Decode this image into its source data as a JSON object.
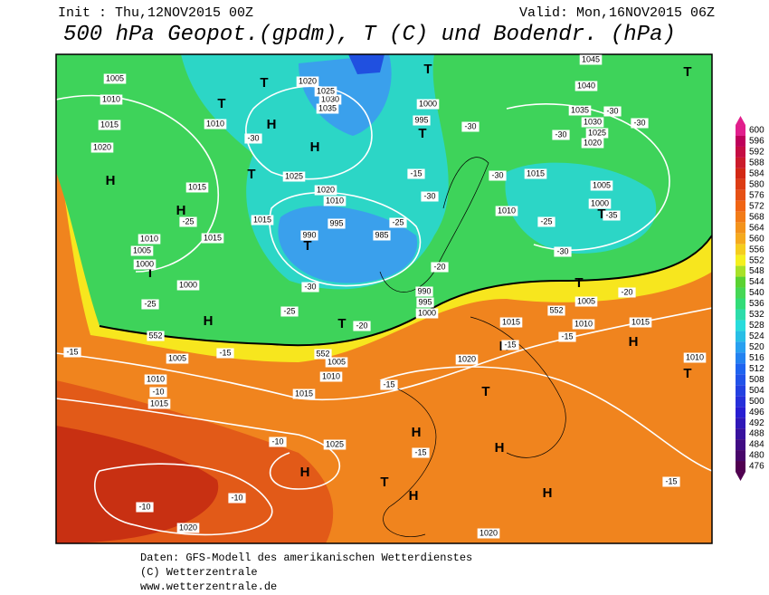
{
  "header": {
    "init": "Init : Thu,12NOV2015 00Z",
    "valid": "Valid: Mon,16NOV2015 06Z",
    "title": "500 hPa Geopot.(gpdm), T (C) und Bodendr. (hPa)"
  },
  "colorbar": {
    "levels": [
      600,
      596,
      592,
      588,
      584,
      580,
      576,
      572,
      568,
      564,
      560,
      556,
      552,
      548,
      544,
      540,
      536,
      532,
      528,
      524,
      520,
      516,
      512,
      508,
      504,
      500,
      496,
      492,
      488,
      484,
      480,
      476
    ]
  },
  "map": {
    "systems": [
      "H",
      "H",
      "H",
      "H",
      "H",
      "H",
      "H",
      "H",
      "H",
      "H",
      "H",
      "H",
      "T",
      "T",
      "T",
      "T",
      "T",
      "T",
      "T",
      "T",
      "T",
      "T",
      "T",
      "T",
      "T",
      "T"
    ],
    "labels": [
      "1005",
      "1010",
      "1015",
      "1020",
      "1010",
      "1015",
      "1015",
      "1015",
      "1010",
      "1005",
      "1000",
      "1000",
      "1020",
      "1035",
      "1030",
      "1025",
      "1025",
      "1020",
      "1010",
      "995",
      "990",
      "985",
      "1000",
      "995",
      "1045",
      "1040",
      "1035",
      "1030",
      "1025",
      "1020",
      "1015",
      "1010",
      "1005",
      "1000",
      "1005",
      "1010",
      "1015",
      "1015",
      "1010",
      "990",
      "995",
      "1000",
      "1005",
      "1005",
      "1010",
      "1010",
      "1015",
      "1015",
      "1020",
      "1025",
      "1020",
      "1020",
      "552",
      "552",
      "552",
      "-30",
      "-25",
      "-25",
      "-25",
      "-30",
      "-20",
      "-15",
      "-15",
      "-15",
      "-10",
      "-10",
      "-15",
      "-10",
      "-10",
      "-15",
      "-15",
      "-30",
      "-30",
      "-30",
      "-30",
      "-30",
      "-30",
      "-25",
      "-20",
      "-35",
      "-15",
      "-30",
      "-20",
      "-15",
      "-25"
    ]
  },
  "footer": [
    "Daten: GFS-Modell des amerikanischen Wetterdienstes",
    "(C) Wetterzentrale",
    "www.wetterzentrale.de"
  ]
}
